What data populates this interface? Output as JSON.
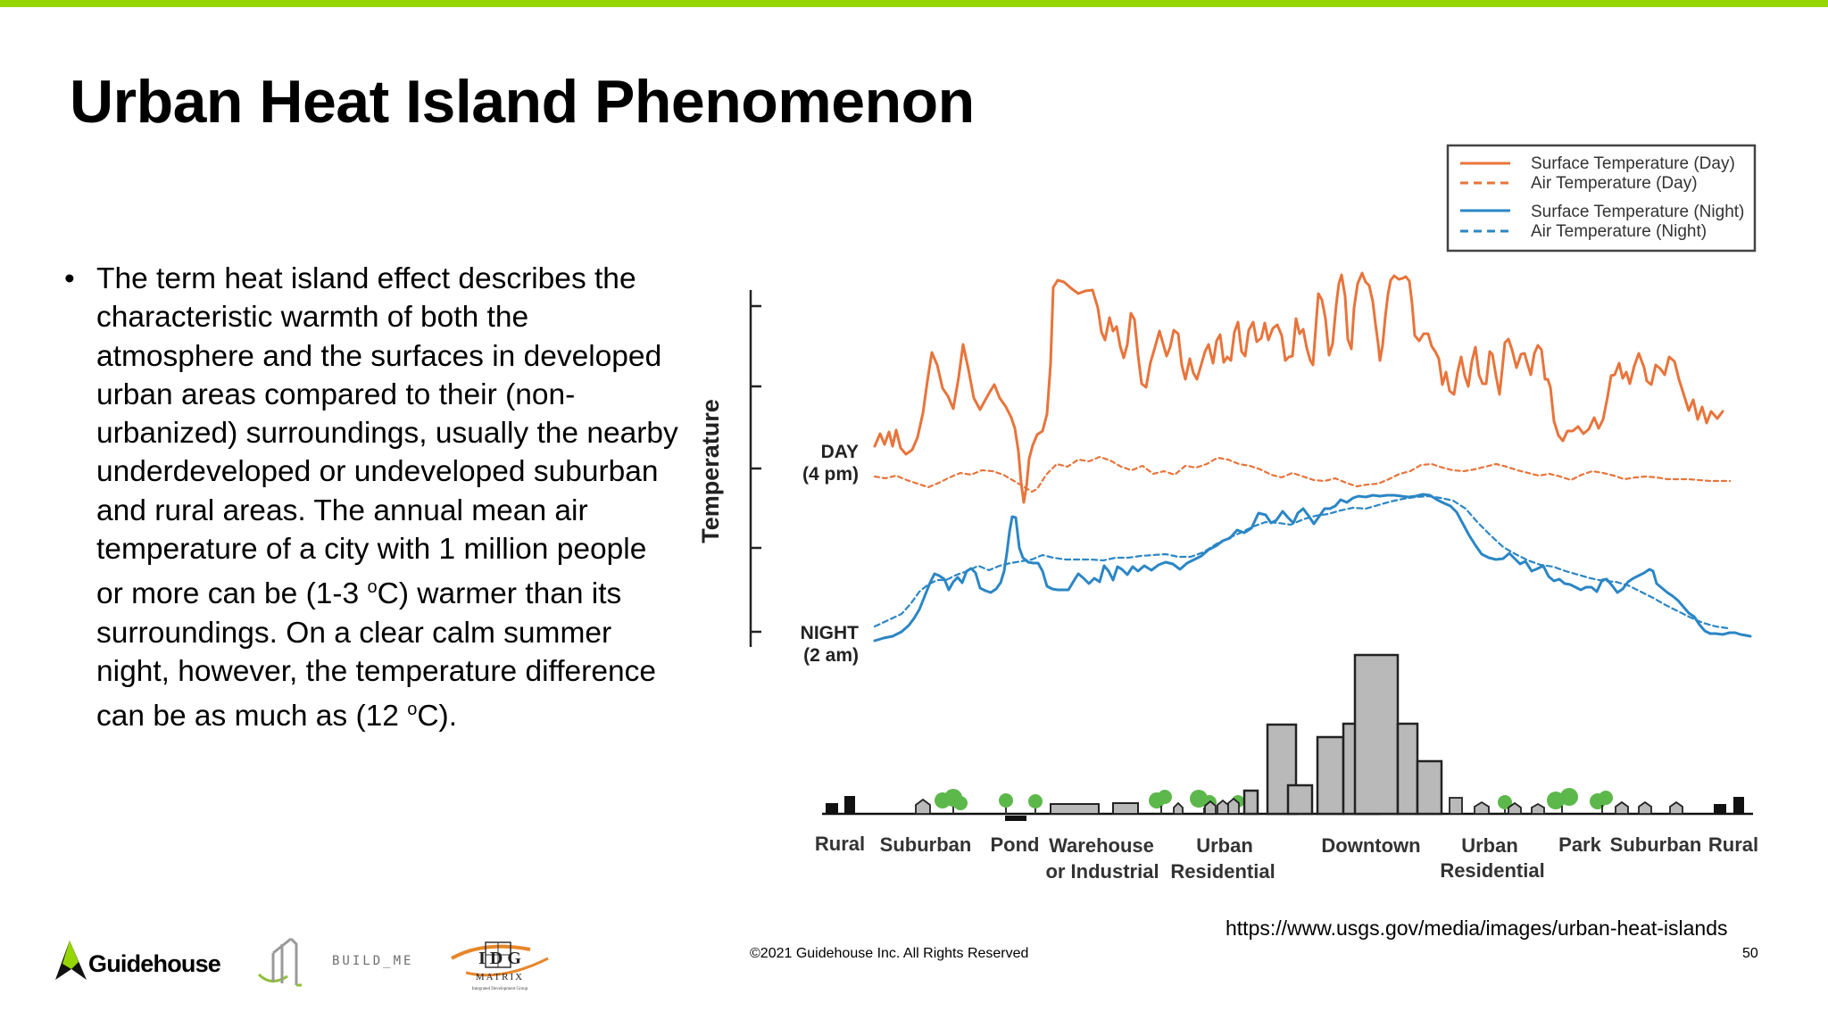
{
  "slide": {
    "title": "Urban Heat Island Phenomenon",
    "accent_color": "#95d600",
    "bullet": {
      "symbol": "•",
      "text_part1": "The term heat island effect describes the characteristic warmth of both the atmosphere and the surfaces in developed urban areas compared to their (non-urbanized) surroundings, usually the nearby underdeveloped or undeveloped suburban and rural areas. The annual mean air temperature of a city with 1 million people or more can be (1-3 ",
      "sup1": "o",
      "text_part2": "C) warmer than its surroundings. On a clear calm summer night, however, the temperature difference can be as much as (12 ",
      "sup2": "o",
      "text_part3": "C)."
    },
    "source_url": "https://www.usgs.gov/media/images/urban-heat-islands",
    "copyright": "©2021 Guidehouse Inc. All Rights Reserved",
    "page_number": "50"
  },
  "logos": {
    "guidehouse": "Guidehouse",
    "buildme": "BUILD_ME",
    "idg_letters": "I D G",
    "idg_sub": "MATRIX",
    "idg_tagline": "Integrated Development Group"
  },
  "diagram": {
    "y_axis_label": "Temperature",
    "day_label": "DAY",
    "day_time": "(4 pm)",
    "night_label": "NIGHT",
    "night_time": "(2 am)",
    "legend": [
      {
        "label": "Surface Temperature (Day)",
        "color": "#e8743b",
        "style": "solid"
      },
      {
        "label": "Air Temperature  (Day)",
        "color": "#e8743b",
        "style": "dashed"
      },
      {
        "label": "Surface Temperature (Night)",
        "color": "#2b86c5",
        "style": "solid"
      },
      {
        "label": "Air Temperature (Night)",
        "color": "#2b86c5",
        "style": "dashed"
      }
    ],
    "zones": [
      {
        "line1": "Rural",
        "line2": ""
      },
      {
        "line1": "Suburban",
        "line2": ""
      },
      {
        "line1": "Pond",
        "line2": ""
      },
      {
        "line1": "Warehouse",
        "line2": "or Industrial"
      },
      {
        "line1": "Urban",
        "line2": "Residential"
      },
      {
        "line1": "Downtown",
        "line2": ""
      },
      {
        "line1": "Urban",
        "line2": "Residential"
      },
      {
        "line1": "Park",
        "line2": ""
      },
      {
        "line1": "Suburban",
        "line2": ""
      },
      {
        "line1": "Rural",
        "line2": ""
      }
    ],
    "colors": {
      "day": "#e8743b",
      "night": "#2b86c5",
      "building_fill": "#b9b9b9",
      "tree": "#5cb84a"
    }
  }
}
